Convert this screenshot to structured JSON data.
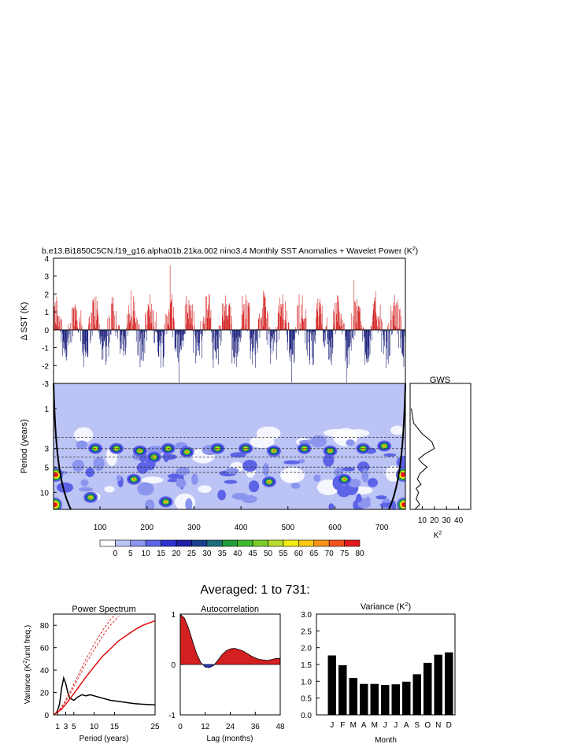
{
  "title": "b.e13.Bi1850C5CN.f19_g16.alpha01b.21ka.002 nino3.4 Monthly SST Anomalies + Wavelet Power (K",
  "title_sup": "2",
  "title_end": ")",
  "averaged_title": "Averaged: 1 to 731:",
  "colors": {
    "positive": "#d42020",
    "negative": "#1a1f7a",
    "wavelet_bg": "#bcc3f5",
    "axis": "#000000"
  },
  "chart_data": [
    {
      "id": "sst_timeseries",
      "type": "bar",
      "ylabel": "Δ SST (K)",
      "ylim": [
        -3,
        4
      ],
      "yticks": [
        "4",
        "3",
        "2",
        "1",
        "0",
        "-1",
        "-2",
        "-3"
      ],
      "ytick_values": [
        4,
        3,
        2,
        1,
        0,
        -1,
        -2,
        -3
      ],
      "x_range": [
        1,
        750
      ],
      "n_months": 750,
      "positive_color": "#d42020",
      "negative_color": "#1a1f7a"
    },
    {
      "id": "wavelet_power",
      "type": "heatmap",
      "ylabel": "Period (years)",
      "yticks": [
        "1",
        "3",
        "5",
        "10"
      ],
      "ytick_values": [
        1,
        3,
        5,
        10
      ],
      "xticks": [
        "100",
        "200",
        "300",
        "400",
        "500",
        "600",
        "700"
      ],
      "xtick_values": [
        100,
        200,
        300,
        400,
        500,
        600,
        700
      ],
      "x_range": [
        1,
        750
      ],
      "y_range_years": [
        0.5,
        16
      ],
      "colorbar_labels": [
        "0",
        "5",
        "10",
        "15",
        "20",
        "25",
        "30",
        "35",
        "40",
        "45",
        "50",
        "55",
        "60",
        "65",
        "70",
        "75",
        "80"
      ],
      "colorbar_colors": [
        "#ffffff",
        "#bcc3f5",
        "#8b95ee",
        "#5c63e6",
        "#2c32d2",
        "#1e20a8",
        "#1c3f8e",
        "#1e6e7a",
        "#1f9e3a",
        "#3cb92e",
        "#7ccd2c",
        "#b9dd2c",
        "#f3ec14",
        "#f9c80f",
        "#f9921a",
        "#f4531d",
        "#e3191b"
      ],
      "hot_spots": [
        {
          "x": 90,
          "period": 3.0
        },
        {
          "x": 135,
          "period": 3.0
        },
        {
          "x": 185,
          "period": 3.2
        },
        {
          "x": 215,
          "period": 3.8
        },
        {
          "x": 245,
          "period": 3.0
        },
        {
          "x": 285,
          "period": 3.3
        },
        {
          "x": 350,
          "period": 3.0
        },
        {
          "x": 410,
          "period": 3.0
        },
        {
          "x": 470,
          "period": 3.2
        },
        {
          "x": 535,
          "period": 3.0
        },
        {
          "x": 590,
          "period": 3.2
        },
        {
          "x": 660,
          "period": 3.0
        },
        {
          "x": 705,
          "period": 2.8
        },
        {
          "x": 172,
          "period": 7.0
        },
        {
          "x": 80,
          "period": 11.5
        },
        {
          "x": 240,
          "period": 13.0
        },
        {
          "x": 460,
          "period": 7.5
        },
        {
          "x": 620,
          "period": 7.0
        }
      ]
    },
    {
      "id": "gws",
      "type": "line",
      "title": "GWS",
      "xlabel": "K",
      "xlabel_sup": "2",
      "xticks": [
        "10",
        "20",
        "30",
        "40"
      ],
      "xtick_values": [
        10,
        20,
        30,
        40
      ],
      "xlim": [
        0,
        50
      ],
      "period_years": [
        1.0,
        1.5,
        2.0,
        2.5,
        3.0,
        3.5,
        4.0,
        4.5,
        5.0,
        6.0,
        7.0,
        8.0,
        9.0,
        10.0,
        11.0,
        12.0,
        14.0,
        16.0
      ],
      "power": [
        1,
        3,
        10,
        18,
        20,
        12,
        7,
        10,
        14,
        8,
        6,
        9,
        5,
        7,
        6,
        5,
        8,
        4
      ]
    },
    {
      "id": "power_spectrum",
      "type": "line",
      "title": "Power Spectrum",
      "xlabel": "Period (years)",
      "ylabel": "Variance (K",
      "ylabel_sup": "2",
      "ylabel_end": "/unit freq.)",
      "xlim": [
        0,
        25
      ],
      "ylim": [
        0,
        90
      ],
      "xticks": [
        "1",
        "3",
        "5",
        "10",
        "15",
        "25"
      ],
      "xtick_values": [
        1,
        3,
        5,
        10,
        15,
        25
      ],
      "yticks": [
        "0",
        "20",
        "40",
        "60",
        "80"
      ],
      "ytick_values": [
        0,
        20,
        40,
        60,
        80
      ],
      "series": [
        {
          "x": [
            0.5,
            1,
            1.5,
            2,
            2.5,
            3,
            3.5,
            4,
            5,
            6,
            7,
            8,
            9,
            10,
            12,
            14,
            16,
            18,
            20,
            22,
            25
          ],
          "values": [
            1,
            4,
            10,
            24,
            33,
            28,
            20,
            15,
            13,
            16,
            18,
            17,
            18,
            17,
            15,
            13,
            12,
            11,
            10,
            9.5,
            9
          ]
        },
        {
          "x": [
            0,
            2,
            4,
            6,
            8,
            10,
            12,
            14,
            16,
            18,
            20,
            22,
            25
          ],
          "values": [
            0,
            5,
            14,
            24,
            34,
            43,
            52,
            59,
            66,
            71,
            76,
            80,
            84
          ]
        },
        {
          "x": [
            0,
            2,
            4,
            6,
            8,
            10,
            12,
            14,
            16
          ],
          "values": [
            0,
            7,
            20,
            35,
            50,
            63,
            75,
            85,
            93
          ]
        },
        {
          "x": [
            0,
            2,
            4,
            6,
            8,
            10,
            12,
            14,
            16
          ],
          "values": [
            0,
            6,
            18,
            32,
            46,
            58,
            70,
            80,
            88
          ]
        }
      ]
    },
    {
      "id": "autocorrelation",
      "type": "area",
      "title": "Autocorrelation",
      "xlabel": "Lag (months)",
      "xlim": [
        0,
        48
      ],
      "ylim": [
        -1,
        1
      ],
      "xticks": [
        "0",
        "12",
        "24",
        "36",
        "48"
      ],
      "xtick_values": [
        0,
        12,
        24,
        36,
        48
      ],
      "yticks": [
        "1",
        "0",
        "-1"
      ],
      "ytick_values": [
        1,
        0,
        -1
      ],
      "x": [
        0,
        2,
        4,
        6,
        8,
        10,
        12,
        14,
        16,
        18,
        20,
        22,
        24,
        26,
        28,
        30,
        32,
        34,
        36,
        38,
        40,
        42,
        44,
        46,
        48
      ],
      "values": [
        1.0,
        0.92,
        0.72,
        0.45,
        0.2,
        0.03,
        -0.05,
        -0.06,
        -0.02,
        0.08,
        0.19,
        0.27,
        0.31,
        0.32,
        0.3,
        0.27,
        0.22,
        0.17,
        0.13,
        0.1,
        0.09,
        0.08,
        0.1,
        0.12,
        0.12
      ]
    },
    {
      "id": "variance",
      "type": "bar",
      "title": "Variance (K",
      "title_sup": "2",
      "title_end": ")",
      "xlabel": "Month",
      "categories": [
        "J",
        "F",
        "M",
        "A",
        "M",
        "J",
        "J",
        "A",
        "S",
        "O",
        "N",
        "D"
      ],
      "values": [
        1.77,
        1.48,
        1.1,
        0.92,
        0.92,
        0.89,
        0.91,
        0.99,
        1.21,
        1.55,
        1.79,
        1.86
      ],
      "ylim": [
        0,
        3.0
      ],
      "yticks": [
        "0.0",
        "0.5",
        "1.0",
        "1.5",
        "2.0",
        "2.5",
        "3.0"
      ],
      "ytick_values": [
        0,
        0.5,
        1.0,
        1.5,
        2.0,
        2.5,
        3.0
      ]
    }
  ]
}
